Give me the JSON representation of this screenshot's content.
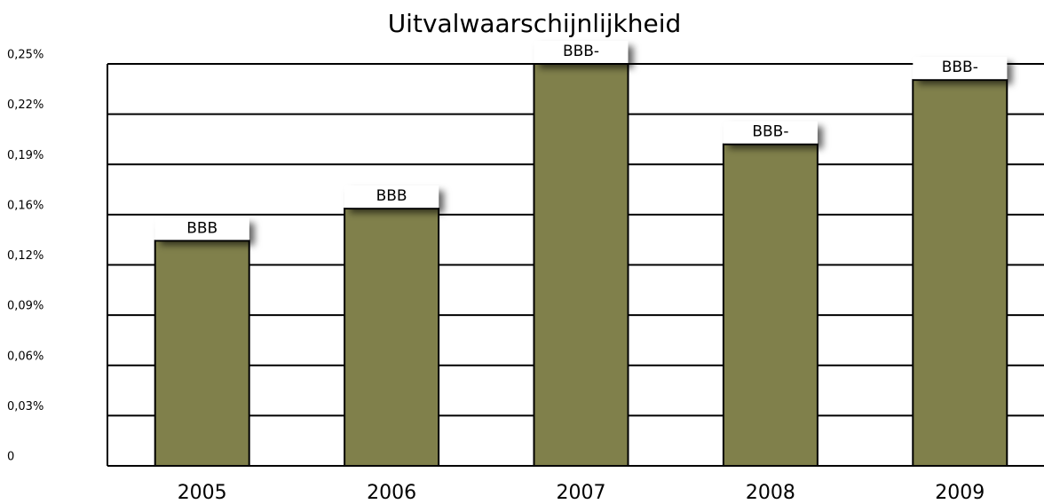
{
  "chart_data": {
    "type": "bar",
    "title": "Uitvalwaarschijnlijkheid",
    "categories": [
      "2005",
      "2006",
      "2007",
      "2008",
      "2009"
    ],
    "values": [
      0.14,
      0.16,
      0.25,
      0.2,
      0.24
    ],
    "annotations": [
      "BBB",
      "BBB",
      "BBB-",
      "BBB-",
      "BBB-"
    ],
    "color": "#80804b",
    "ylim": [
      0,
      0.25
    ],
    "yticks": [
      0,
      {
        "value": 0.03125,
        "label": "0,03%"
      },
      {
        "value": 0.0625,
        "label": "0,06%"
      },
      {
        "value": 0.09375,
        "label": "0,09%"
      },
      {
        "value": 0.125,
        "label": "0,12%"
      },
      {
        "value": 0.15625,
        "label": "0,16%"
      },
      {
        "value": 0.1875,
        "label": "0,19%"
      },
      {
        "value": 0.21875,
        "label": "0,22%"
      },
      {
        "value": 0.25,
        "label": "0,25%"
      }
    ],
    "grid": true
  }
}
